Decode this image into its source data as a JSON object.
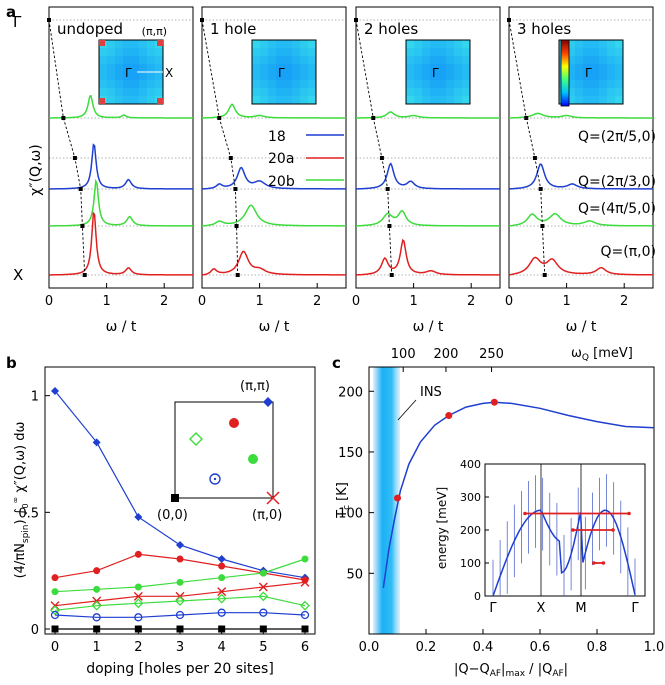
{
  "panel_labels": {
    "a": "a",
    "b": "b",
    "c": "c"
  },
  "chart_data": [
    {
      "id": "a",
      "type": "line",
      "ylabel": "χ″(Q,ω)",
      "xlabel": "ω / t",
      "xlim": [
        0,
        2.5
      ],
      "xticks": [
        "0",
        "1",
        "2"
      ],
      "y_letters": {
        "gamma": "Γ",
        "x": "X"
      },
      "inset_labels": {
        "gamma": "Γ",
        "x": "X",
        "pipi": "(π,π)"
      },
      "legend": [
        {
          "name": "18",
          "color": "#1f3fd0"
        },
        {
          "name": "20a",
          "color": "#e02020"
        },
        {
          "name": "20b",
          "color": "#3ddc3d"
        }
      ],
      "q_labels": [
        "Q=(2π/5,0)",
        "Q=(2π/3,0)",
        "Q=(4π/5,0)",
        "Q=(π,0)"
      ],
      "panels": [
        {
          "title": "undoped",
          "has_pipi": true,
          "has_colorbar": false,
          "guide_x": [
            0.0,
            0.25,
            0.45,
            0.55,
            0.58,
            0.62
          ],
          "rows": [
            {
              "color": "#3ddc3d",
              "peaks": [
                [
                  0.72,
                  0.5,
                  0.05
                ],
                [
                  1.3,
                  0.06,
                  0.05
                ]
              ]
            },
            {
              "color": "#1f3fd0",
              "peaks": [
                [
                  0.78,
                  1.0,
                  0.045
                ],
                [
                  1.38,
                  0.2,
                  0.06
                ]
              ]
            },
            {
              "color": "#3ddc3d",
              "peaks": [
                [
                  0.82,
                  1.0,
                  0.045
                ],
                [
                  1.4,
                  0.2,
                  0.06
                ]
              ]
            },
            {
              "color": "#e02020",
              "peaks": [
                [
                  0.78,
                  1.4,
                  0.045
                ],
                [
                  1.38,
                  0.15,
                  0.06
                ]
              ]
            }
          ]
        },
        {
          "title": "1 hole",
          "has_pipi": false,
          "has_colorbar": false,
          "guide_x": [
            0.0,
            0.3,
            0.5,
            0.58,
            0.6,
            0.62
          ],
          "rows": [
            {
              "color": "#3ddc3d",
              "peaks": [
                [
                  0.52,
                  0.3,
                  0.07
                ],
                [
                  1.0,
                  0.05,
                  0.1
                ]
              ]
            },
            {
              "color": "#1f3fd0",
              "peaks": [
                [
                  0.68,
                  0.45,
                  0.08
                ],
                [
                  1.0,
                  0.15,
                  0.12
                ],
                [
                  0.3,
                  0.1,
                  0.06
                ]
              ]
            },
            {
              "color": "#3ddc3d",
              "peaks": [
                [
                  0.85,
                  0.45,
                  0.12
                ],
                [
                  0.3,
                  0.1,
                  0.08
                ]
              ]
            },
            {
              "color": "#e02020",
              "peaks": [
                [
                  0.72,
                  0.5,
                  0.1
                ],
                [
                  0.2,
                  0.15,
                  0.06
                ],
                [
                  1.0,
                  0.1,
                  0.12
                ]
              ]
            }
          ]
        },
        {
          "title": "2 holes",
          "has_pipi": false,
          "has_colorbar": false,
          "guide_x": [
            0.0,
            0.3,
            0.45,
            0.55,
            0.58,
            0.62
          ],
          "rows": [
            {
              "color": "#3ddc3d",
              "peaks": [
                [
                  0.6,
                  0.13,
                  0.08
                ],
                [
                  1.0,
                  0.05,
                  0.1
                ]
              ]
            },
            {
              "color": "#1f3fd0",
              "peaks": [
                [
                  0.6,
                  0.55,
                  0.07
                ],
                [
                  0.95,
                  0.15,
                  0.08
                ]
              ]
            },
            {
              "color": "#3ddc3d",
              "peaks": [
                [
                  0.55,
                  0.25,
                  0.1
                ],
                [
                  0.8,
                  0.3,
                  0.08
                ]
              ]
            },
            {
              "color": "#e02020",
              "peaks": [
                [
                  0.5,
                  0.35,
                  0.07
                ],
                [
                  0.82,
                  0.75,
                  0.06
                ],
                [
                  1.3,
                  0.08,
                  0.1
                ]
              ]
            }
          ]
        },
        {
          "title": "3 holes",
          "has_pipi": false,
          "has_colorbar": true,
          "guide_x": [
            0.0,
            0.3,
            0.45,
            0.55,
            0.58,
            0.62
          ],
          "rows": [
            {
              "color": "#3ddc3d",
              "peaks": [
                [
                  0.5,
                  0.1,
                  0.12
                ],
                [
                  1.0,
                  0.05,
                  0.1
                ]
              ]
            },
            {
              "color": "#1f3fd0",
              "peaks": [
                [
                  0.55,
                  0.55,
                  0.08
                ],
                [
                  1.1,
                  0.1,
                  0.1
                ]
              ]
            },
            {
              "color": "#3ddc3d",
              "peaks": [
                [
                  0.4,
                  0.25,
                  0.1
                ],
                [
                  0.8,
                  0.25,
                  0.12
                ],
                [
                  1.4,
                  0.1,
                  0.12
                ]
              ]
            },
            {
              "color": "#e02020",
              "peaks": [
                [
                  0.45,
                  0.35,
                  0.12
                ],
                [
                  0.75,
                  0.3,
                  0.12
                ],
                [
                  1.6,
                  0.15,
                  0.1
                ]
              ]
            }
          ]
        }
      ]
    },
    {
      "id": "b",
      "type": "line",
      "xlabel": "doping [holes per 20 sites]",
      "ylabel": "(4/πN_spin) ∫₀^∞ χ″(Q,ω) dω",
      "ylabel_prefix": "(4/πN",
      "ylabel_sub": "spin",
      "ylabel_mid": ") ∫",
      "ylabel_lo": "0",
      "ylabel_hi": "∞",
      "ylabel_tail": " χ″(Q,ω) dω",
      "xlim": [
        0,
        6
      ],
      "ylim": [
        0,
        1.05
      ],
      "x": [
        0,
        1,
        2,
        3,
        4,
        5,
        6
      ],
      "yticks": [
        "0",
        "0.5",
        "1"
      ],
      "inset": {
        "pipi": "(π,π)",
        "origin": "(0,0)",
        "pi0": "(π,0)"
      },
      "series": [
        {
          "color": "#1f3fd0",
          "marker": "diamond",
          "values": [
            1.02,
            0.8,
            0.48,
            0.36,
            0.3,
            0.25,
            0.22
          ]
        },
        {
          "color": "#e02020",
          "marker": "circle",
          "values": [
            0.22,
            0.25,
            0.32,
            0.3,
            0.27,
            0.24,
            0.21
          ]
        },
        {
          "color": "#3ddc3d",
          "marker": "circle",
          "values": [
            0.16,
            0.17,
            0.18,
            0.2,
            0.22,
            0.24,
            0.3
          ]
        },
        {
          "color": "#e02020",
          "marker": "x",
          "values": [
            0.1,
            0.12,
            0.14,
            0.14,
            0.16,
            0.18,
            0.2
          ]
        },
        {
          "color": "#3ddc3d",
          "marker": "diamond-open",
          "values": [
            0.08,
            0.1,
            0.11,
            0.12,
            0.13,
            0.14,
            0.1
          ]
        },
        {
          "color": "#1f3fd0",
          "marker": "circle-open",
          "values": [
            0.06,
            0.05,
            0.05,
            0.06,
            0.07,
            0.07,
            0.06
          ]
        },
        {
          "color": "#000000",
          "marker": "square",
          "values": [
            0,
            0,
            0,
            0,
            0,
            0,
            0
          ]
        }
      ]
    },
    {
      "id": "c",
      "type": "line",
      "xlabel": "|Q−Q_AF|_max / |Q_AF|",
      "xlabel_pre": "|Q−Q",
      "xlabel_sub1": "AF",
      "xlabel_mid": "|",
      "xlabel_sub2": "max",
      "xlabel_mid2": " / |Q",
      "xlabel_sub3": "AF",
      "xlabel_tail": "|",
      "ylabel": "T_c [K]",
      "ylabel_main": "T",
      "ylabel_sub": "c",
      "ylabel_tail": " [K]",
      "xlim": [
        0,
        1
      ],
      "ylim": [
        0,
        220
      ],
      "xticks": [
        "0.0",
        "0.2",
        "0.4",
        "0.6",
        "0.8",
        "1.0"
      ],
      "yticks": [
        "50",
        "100",
        "150",
        "200"
      ],
      "top_ticks": [
        "100",
        "200",
        "250"
      ],
      "top_ticks_x": [
        0.12,
        0.27,
        0.43
      ],
      "top_label": "ω",
      "top_label_sub": "Q",
      "top_label_tail": " [meV]",
      "ins_label": "INS",
      "curve": {
        "x": [
          0.05,
          0.07,
          0.09,
          0.11,
          0.14,
          0.18,
          0.23,
          0.28,
          0.34,
          0.4,
          0.44,
          0.5,
          0.6,
          0.7,
          0.8,
          0.9,
          1.0
        ],
        "y": [
          38,
          70,
          95,
          118,
          140,
          158,
          172,
          180,
          187,
          190,
          191,
          190,
          186,
          180,
          175,
          171,
          170
        ]
      },
      "points": {
        "x": [
          0.1,
          0.28,
          0.44
        ],
        "y": [
          112,
          180,
          191
        ]
      },
      "inset": {
        "ylabel": "energy [meV]",
        "yticks": [
          "0",
          "100",
          "200",
          "300",
          "400"
        ],
        "xlabels": [
          "Γ",
          "X",
          "M",
          "Γ"
        ]
      }
    }
  ]
}
